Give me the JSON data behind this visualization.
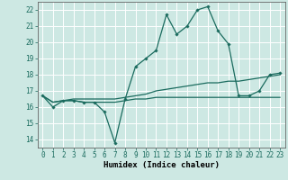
{
  "xlabel": "Humidex (Indice chaleur)",
  "x_values": [
    0,
    1,
    2,
    3,
    4,
    5,
    6,
    7,
    8,
    9,
    10,
    11,
    12,
    13,
    14,
    15,
    16,
    17,
    18,
    19,
    20,
    21,
    22,
    23
  ],
  "line1_y": [
    16.7,
    16.0,
    16.4,
    16.4,
    16.3,
    16.3,
    15.7,
    13.8,
    16.5,
    18.5,
    19.0,
    19.5,
    21.7,
    20.5,
    21.0,
    22.0,
    22.2,
    20.7,
    19.9,
    16.7,
    16.7,
    17.0,
    18.0,
    18.1
  ],
  "line2_y": [
    16.7,
    16.3,
    16.4,
    16.4,
    16.3,
    16.3,
    16.3,
    16.3,
    16.4,
    16.5,
    16.5,
    16.6,
    16.6,
    16.6,
    16.6,
    16.6,
    16.6,
    16.6,
    16.6,
    16.6,
    16.6,
    16.6,
    16.6,
    16.6
  ],
  "line3_y": [
    16.7,
    16.3,
    16.4,
    16.5,
    16.5,
    16.5,
    16.5,
    16.5,
    16.6,
    16.7,
    16.8,
    17.0,
    17.1,
    17.2,
    17.3,
    17.4,
    17.5,
    17.5,
    17.6,
    17.6,
    17.7,
    17.8,
    17.9,
    18.0
  ],
  "ylim": [
    13.5,
    22.5
  ],
  "yticks": [
    14,
    15,
    16,
    17,
    18,
    19,
    20,
    21,
    22
  ],
  "bg_color": "#cde8e3",
  "grid_color": "#ffffff",
  "line_color": "#1a6b5e",
  "tick_fontsize": 5.5,
  "xlabel_fontsize": 6.5
}
